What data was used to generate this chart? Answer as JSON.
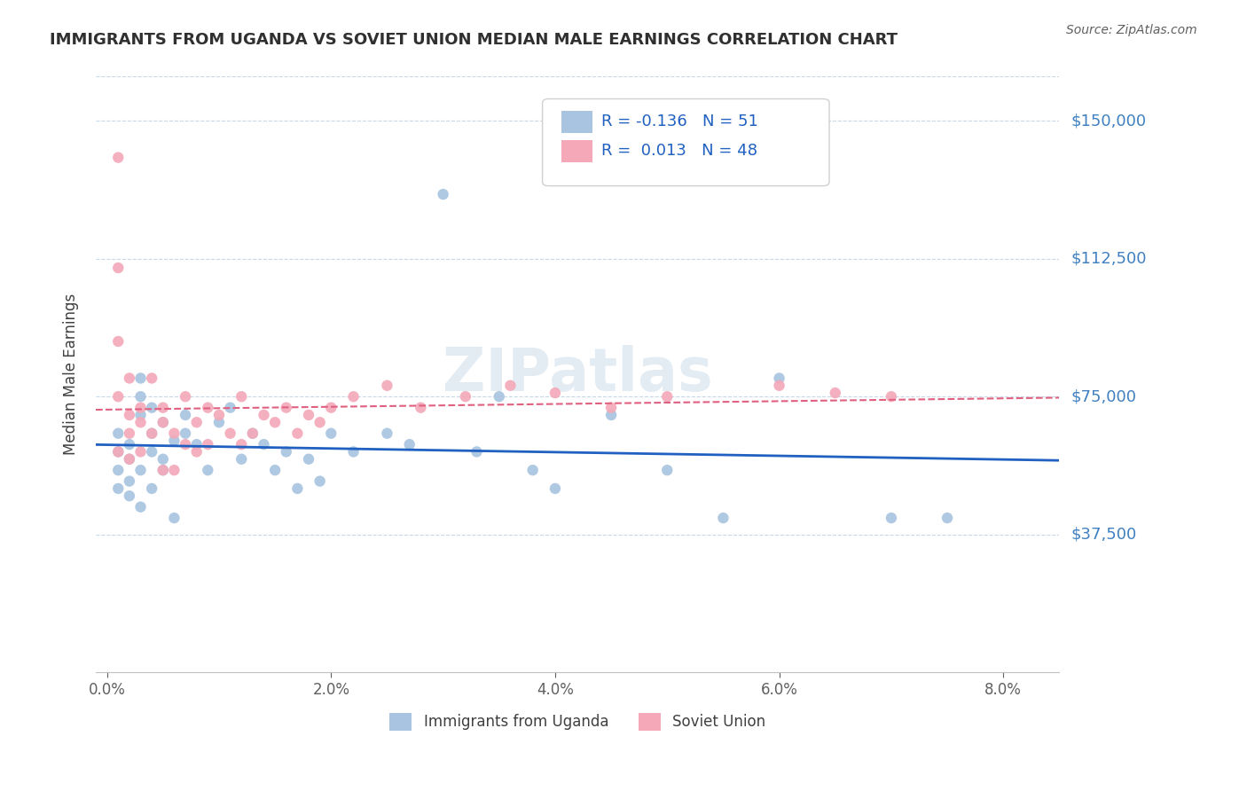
{
  "title": "IMMIGRANTS FROM UGANDA VS SOVIET UNION MEDIAN MALE EARNINGS CORRELATION CHART",
  "source": "Source: ZipAtlas.com",
  "xlabel_bottom": "",
  "ylabel": "Median Male Earnings",
  "x_ticks": [
    0.0,
    0.02,
    0.04,
    0.06,
    0.08
  ],
  "x_tick_labels": [
    "0.0%",
    "2.0%",
    "4.0%",
    "6.0%",
    "8.0%"
  ],
  "y_ticks": [
    0,
    37500,
    75000,
    112500,
    150000
  ],
  "y_tick_labels": [
    "",
    "$37,500",
    "$75,000",
    "$112,500",
    "$150,000"
  ],
  "xlim": [
    -0.001,
    0.085
  ],
  "ylim": [
    0,
    162000
  ],
  "uganda_color": "#a8c4e0",
  "soviet_color": "#f4a8b8",
  "uganda_line_color": "#2060c0",
  "soviet_line_color": "#e06080",
  "legend_box_color": "#ffffff",
  "legend_text_color": "#2060c0",
  "background_color": "#ffffff",
  "grid_color": "#c8d8e8",
  "title_color": "#303030",
  "source_color": "#606060",
  "R_uganda": -0.136,
  "N_uganda": 51,
  "R_soviet": 0.013,
  "N_soviet": 48,
  "uganda_x": [
    0.001,
    0.001,
    0.001,
    0.001,
    0.002,
    0.002,
    0.002,
    0.002,
    0.003,
    0.003,
    0.003,
    0.003,
    0.003,
    0.004,
    0.004,
    0.004,
    0.004,
    0.005,
    0.005,
    0.005,
    0.006,
    0.006,
    0.007,
    0.007,
    0.008,
    0.009,
    0.01,
    0.011,
    0.012,
    0.013,
    0.014,
    0.015,
    0.016,
    0.017,
    0.018,
    0.019,
    0.02,
    0.022,
    0.025,
    0.027,
    0.03,
    0.033,
    0.035,
    0.038,
    0.04,
    0.045,
    0.05,
    0.055,
    0.06,
    0.07,
    0.075
  ],
  "uganda_y": [
    55000,
    60000,
    65000,
    50000,
    58000,
    62000,
    48000,
    52000,
    70000,
    75000,
    80000,
    55000,
    45000,
    65000,
    60000,
    72000,
    50000,
    68000,
    58000,
    55000,
    63000,
    42000,
    70000,
    65000,
    62000,
    55000,
    68000,
    72000,
    58000,
    65000,
    62000,
    55000,
    60000,
    50000,
    58000,
    52000,
    65000,
    60000,
    65000,
    62000,
    130000,
    60000,
    75000,
    55000,
    50000,
    70000,
    55000,
    42000,
    80000,
    42000,
    42000
  ],
  "soviet_x": [
    0.001,
    0.001,
    0.001,
    0.001,
    0.001,
    0.002,
    0.002,
    0.002,
    0.002,
    0.003,
    0.003,
    0.003,
    0.004,
    0.004,
    0.005,
    0.005,
    0.005,
    0.006,
    0.006,
    0.007,
    0.007,
    0.008,
    0.008,
    0.009,
    0.009,
    0.01,
    0.011,
    0.012,
    0.012,
    0.013,
    0.014,
    0.015,
    0.016,
    0.017,
    0.018,
    0.019,
    0.02,
    0.022,
    0.025,
    0.028,
    0.032,
    0.036,
    0.04,
    0.045,
    0.05,
    0.06,
    0.065,
    0.07
  ],
  "soviet_y": [
    140000,
    110000,
    90000,
    75000,
    60000,
    80000,
    70000,
    65000,
    58000,
    72000,
    68000,
    60000,
    80000,
    65000,
    72000,
    68000,
    55000,
    65000,
    55000,
    75000,
    62000,
    68000,
    60000,
    72000,
    62000,
    70000,
    65000,
    75000,
    62000,
    65000,
    70000,
    68000,
    72000,
    65000,
    70000,
    68000,
    72000,
    75000,
    78000,
    72000,
    75000,
    78000,
    76000,
    72000,
    75000,
    78000,
    76000,
    75000
  ]
}
